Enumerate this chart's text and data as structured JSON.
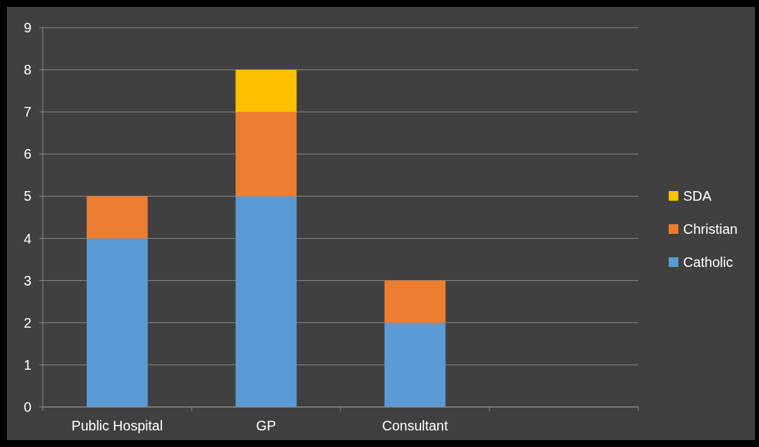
{
  "chart_data": {
    "type": "bar",
    "stacked": true,
    "categories": [
      "Public Hospital",
      "GP",
      "Consultant",
      null
    ],
    "series": [
      {
        "name": "Catholic",
        "color": "#5b9bd5",
        "values": [
          4,
          5,
          2,
          null
        ]
      },
      {
        "name": "Christian",
        "color": "#ed7d31",
        "values": [
          1,
          2,
          1,
          null
        ]
      },
      {
        "name": "SDA",
        "color": "#ffc000",
        "values": [
          0,
          1,
          0,
          null
        ]
      }
    ],
    "ylim": [
      0,
      9
    ],
    "yticks": [
      0,
      1,
      2,
      3,
      4,
      5,
      6,
      7,
      8,
      9
    ],
    "grid": "y",
    "legend": "right"
  }
}
